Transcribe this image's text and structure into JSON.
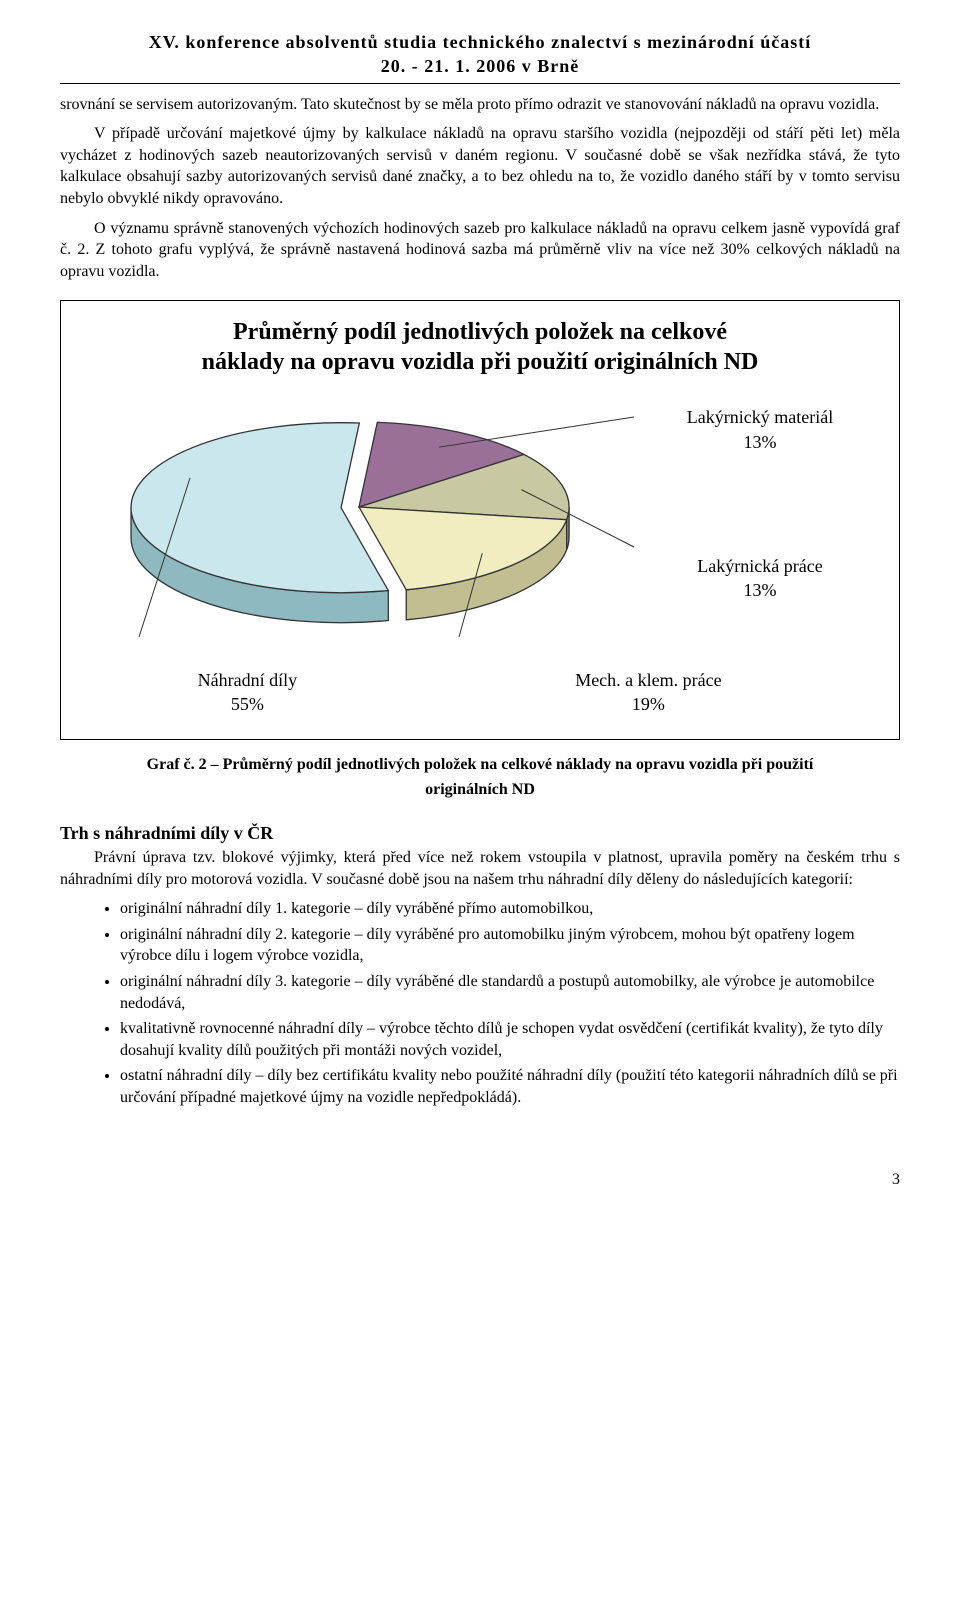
{
  "header": {
    "line1": "XV. konference absolventů studia technického znalectví s mezinárodní účastí",
    "line2": "20. - 21. 1. 2006 v Brně"
  },
  "body": {
    "p1": "srovnání se servisem autorizovaným. Tato skutečnost by se měla proto přímo odrazit ve stanovování nákladů na opravu vozidla.",
    "p2": "V případě určování majetkové újmy by kalkulace nákladů na opravu staršího vozidla (nejpozději od stáří pěti let) měla vycházet z hodinových sazeb neautorizovaných servisů v daném regionu. V současné době se však nezřídka stává, že tyto kalkulace obsahují sazby autorizovaných servisů dané značky, a to bez ohledu na to, že vozidlo daného stáří by v tomto servisu nebylo obvyklé nikdy opravováno.",
    "p3": "O významu správně stanovených výchozích hodinových sazeb pro kalkulace nákladů na opravu celkem jasně vypovídá graf č. 2. Z tohoto grafu vyplývá, že správně nastavená hodinová sazba má průměrně vliv na více než 30% celkových nákladů na opravu vozidla."
  },
  "chart": {
    "type": "pie-3d",
    "title_l1": "Průměrný podíl jednotlivých položek na celkové",
    "title_l2": "náklady na opravu vozidla při použití originálních ND",
    "slices": [
      {
        "label": "Náhradní díly",
        "pct": "55%",
        "value": 55,
        "fill": "#c9e7ec",
        "side_fill": "#8fb9c0"
      },
      {
        "label": "Lakýrnický materiál",
        "pct": "13%",
        "value": 13,
        "fill": "#9a7099",
        "side_fill": "#6a4d69"
      },
      {
        "label": "Lakýrnická práce",
        "pct": "13%",
        "value": 13,
        "fill": "#c8c9a3",
        "side_fill": "#93946f"
      },
      {
        "label": "Mech. a klem. práce",
        "pct": "19%",
        "value": 19,
        "fill": "#f0edc1",
        "side_fill": "#c1be91"
      }
    ],
    "line_color": "#333333",
    "stroke_width": 1.3,
    "background": "#ffffff",
    "label_font_size": 18,
    "title_font_size": 24
  },
  "caption": {
    "line1": "Graf č. 2 – Průměrný podíl jednotlivých položek na celkové náklady na opravu vozidla při použití",
    "line2": "originálních ND"
  },
  "section": {
    "heading": "Trh s náhradními díly v ČR",
    "para": "Právní úprava tzv. blokové výjimky, která před více než rokem vstoupila v platnost, upravila poměry na českém trhu s náhradními díly pro motorová vozidla. V současné době jsou na našem trhu náhradní díly děleny do následujících kategorií:",
    "bullets": [
      "originální náhradní díly 1. kategorie – díly vyráběné přímo automobilkou,",
      "originální náhradní díly 2. kategorie – díly vyráběné pro automobilku jiným výrobcem, mohou být opatřeny logem výrobce dílu i logem výrobce vozidla,",
      "originální náhradní díly 3. kategorie – díly vyráběné dle standardů a postupů automobilky, ale výrobce je automobilce nedodává,",
      "kvalitativně rovnocenné náhradní díly – výrobce těchto dílů je schopen vydat osvědčení (certifikát kvality), že tyto díly dosahují kvality dílů použitých při montáži nových vozidel,",
      "ostatní náhradní díly – díly bez certifikátu kvality nebo použité náhradní díly (použití této kategorii náhradních dílů se při určování případné majetkové újmy na vozidle nepředpokládá)."
    ]
  },
  "page_number": "3"
}
